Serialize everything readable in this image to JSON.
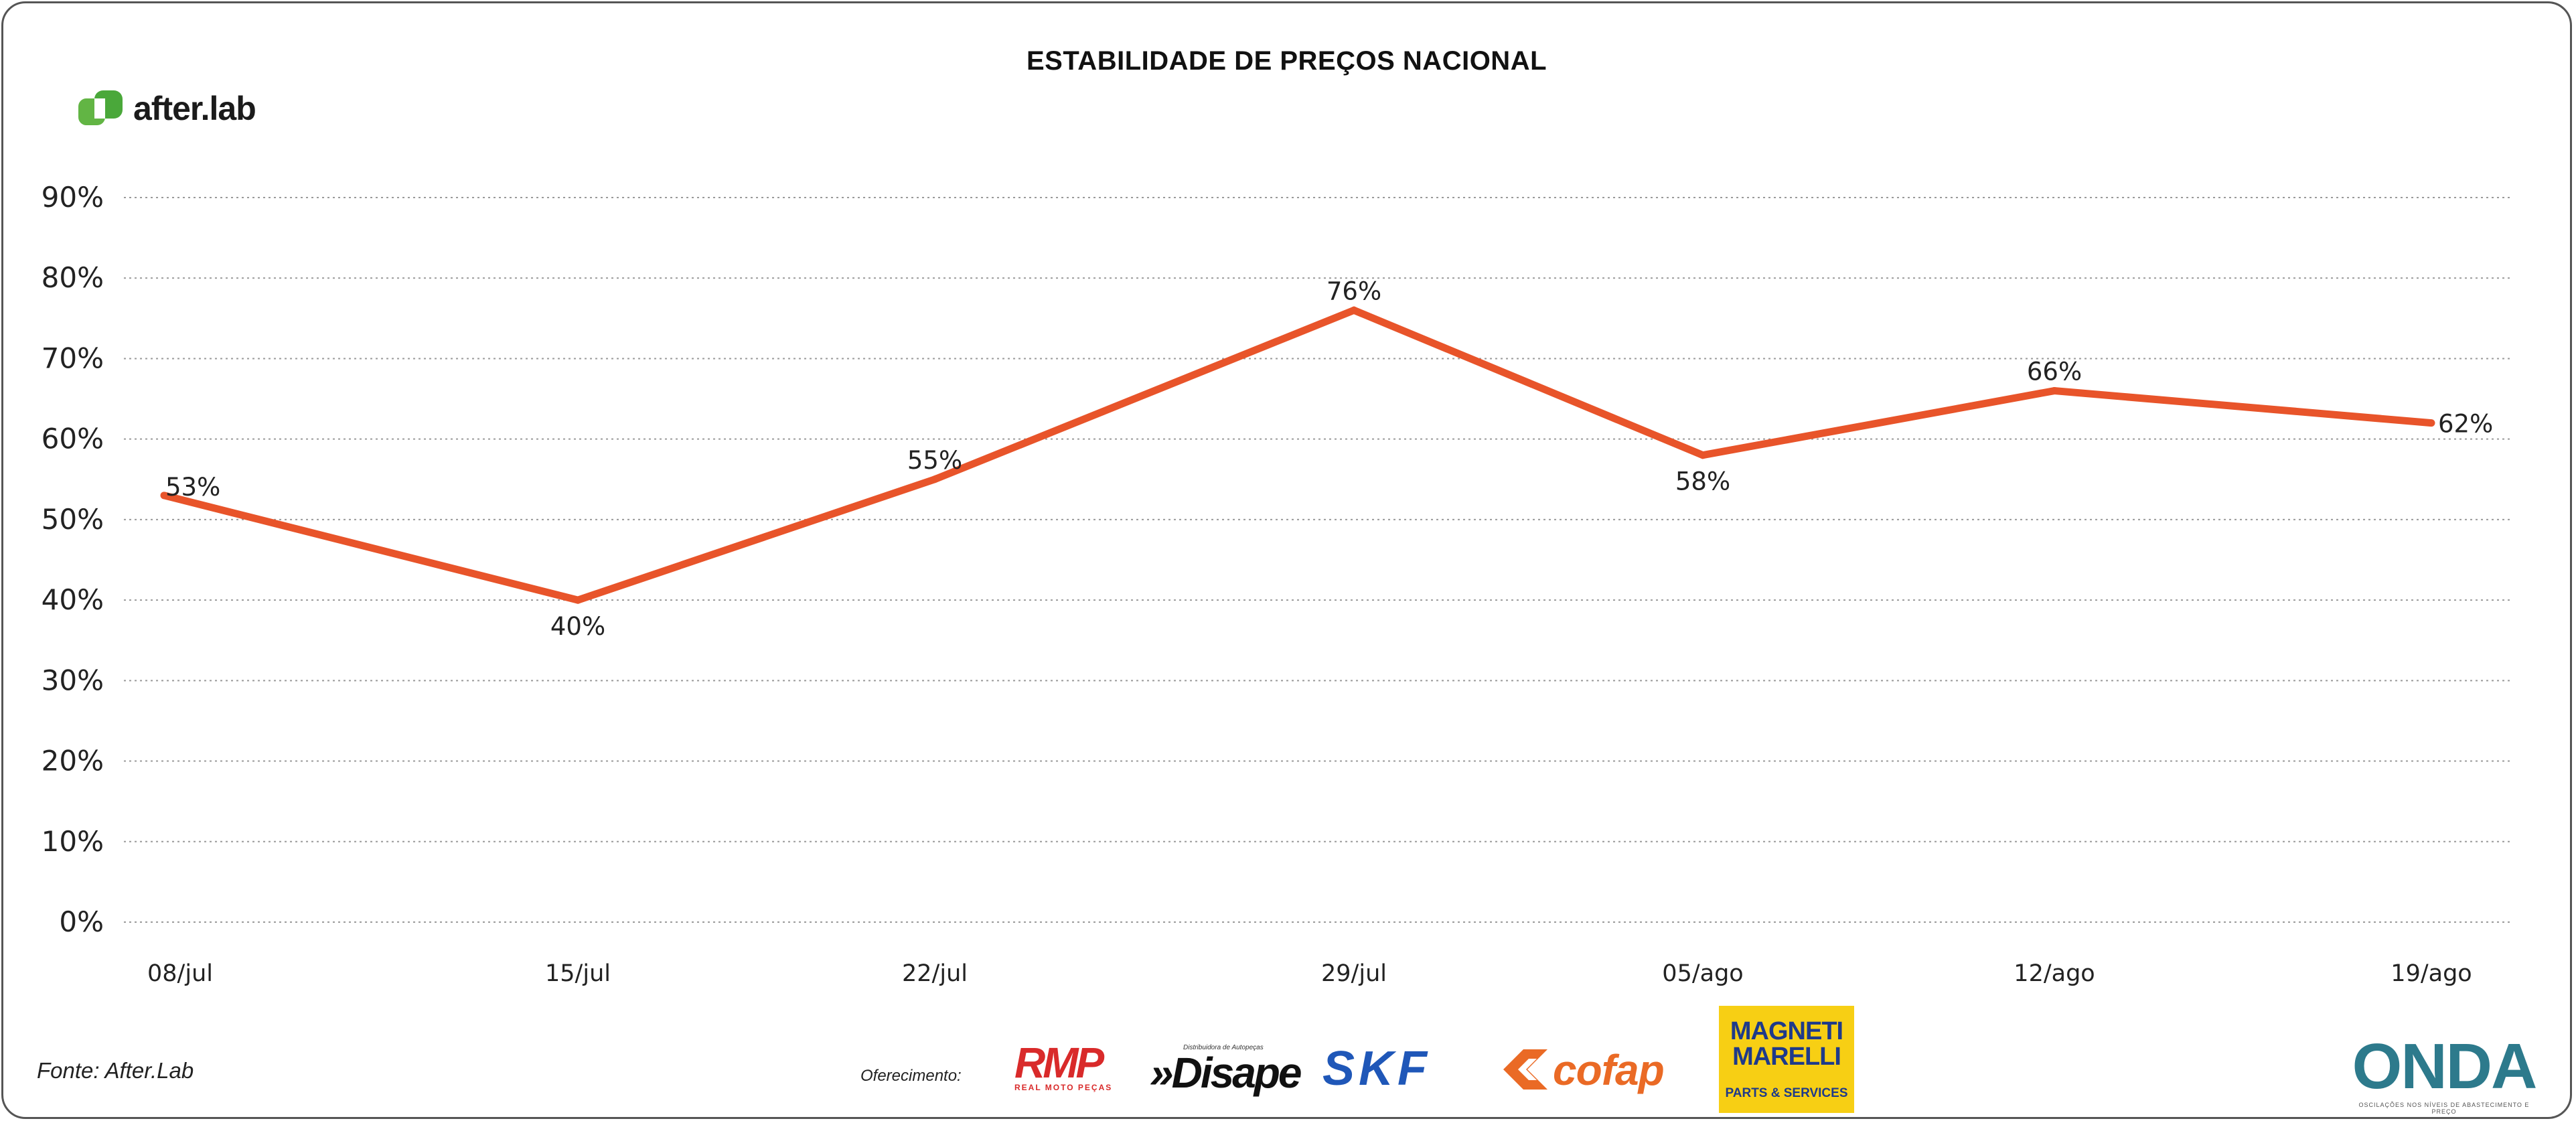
{
  "title": "ESTABILIDADE DE PREÇOS NACIONAL",
  "brand": {
    "name": "after.lab",
    "icon": "afterlab-logo-icon",
    "color": "#62b544"
  },
  "chart_data": {
    "type": "line",
    "title": "ESTABILIDADE DE PREÇOS NACIONAL",
    "xlabel": "",
    "ylabel": "",
    "categories": [
      "08/jul",
      "15/jul",
      "22/jul",
      "29/jul",
      "05/ago",
      "12/ago",
      "19/ago"
    ],
    "series": [
      {
        "values": [
          53,
          40,
          55,
          76,
          58,
          66,
          62
        ],
        "labels": [
          "53%",
          "40%",
          "55%",
          "76%",
          "58%",
          "66%",
          "62%"
        ],
        "color": "#e8542a"
      }
    ],
    "y_ticks": [
      "0%",
      "10%",
      "20%",
      "30%",
      "40%",
      "50%",
      "60%",
      "70%",
      "80%",
      "90%"
    ],
    "ylim": [
      0,
      90
    ],
    "grid": "horizontal dotted",
    "legend": "none"
  },
  "footer": {
    "source": "Fonte: After.Lab",
    "sponsor_label": "Oferecimento:",
    "sponsors": {
      "rmp": {
        "name": "RMP",
        "sub": "REAL MOTO PEÇAS"
      },
      "disape": {
        "name": "»Disape",
        "tag": "Distribuidora de Autopeças"
      },
      "skf": {
        "name": "SKF"
      },
      "cofap": {
        "name": "cofap"
      },
      "magneti_marelli": {
        "line1": "MAGNETI",
        "line2": "MARELLI",
        "sub": "PARTS & SERVICES"
      },
      "onda": {
        "name": "ONDA",
        "sub": "OSCILAÇÕES NOS NÍVEIS DE ABASTECIMENTO E PREÇO"
      }
    }
  }
}
